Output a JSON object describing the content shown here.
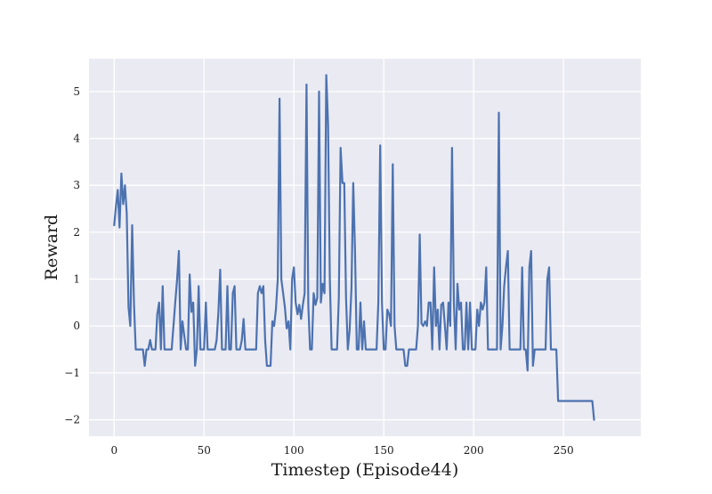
{
  "chart_data": {
    "type": "line",
    "title": "",
    "xlabel": "Timestep (Episode44)",
    "ylabel": "Reward",
    "xlim": [
      -14,
      293
    ],
    "ylim": [
      -2.35,
      5.7
    ],
    "xticks": [
      0,
      50,
      100,
      150,
      200,
      250
    ],
    "yticks": [
      -2,
      -1,
      0,
      1,
      2,
      3,
      4,
      5
    ],
    "grid": true,
    "legend": "none",
    "colors": {
      "background": "#eaeaf2",
      "grid": "#ffffff",
      "line": "#4c72b0"
    },
    "series": [
      {
        "points": [
          [
            0,
            2.15
          ],
          [
            1,
            2.55
          ],
          [
            2,
            2.9
          ],
          [
            3,
            2.1
          ],
          [
            4,
            3.25
          ],
          [
            5,
            2.6
          ],
          [
            6,
            3.0
          ],
          [
            7,
            2.4
          ],
          [
            8,
            0.4
          ],
          [
            9,
            0.0
          ],
          [
            10,
            2.15
          ],
          [
            11,
            0.5
          ],
          [
            12,
            -0.5
          ],
          [
            14,
            -0.5
          ],
          [
            16,
            -0.5
          ],
          [
            17,
            -0.85
          ],
          [
            18,
            -0.5
          ],
          [
            19,
            -0.5
          ],
          [
            20,
            -0.3
          ],
          [
            21,
            -0.5
          ],
          [
            22,
            -0.5
          ],
          [
            23,
            -0.5
          ],
          [
            24,
            0.25
          ],
          [
            25,
            0.5
          ],
          [
            26,
            -0.5
          ],
          [
            27,
            0.85
          ],
          [
            28,
            -0.5
          ],
          [
            30,
            -0.5
          ],
          [
            32,
            -0.5
          ],
          [
            33,
            0.0
          ],
          [
            34,
            0.5
          ],
          [
            35,
            1.0
          ],
          [
            36,
            1.6
          ],
          [
            37,
            -0.5
          ],
          [
            38,
            0.1
          ],
          [
            39,
            -0.2
          ],
          [
            40,
            -0.5
          ],
          [
            41,
            -0.5
          ],
          [
            42,
            1.1
          ],
          [
            43,
            0.3
          ],
          [
            44,
            0.5
          ],
          [
            45,
            -0.85
          ],
          [
            46,
            -0.5
          ],
          [
            47,
            0.85
          ],
          [
            48,
            -0.5
          ],
          [
            49,
            -0.5
          ],
          [
            50,
            -0.5
          ],
          [
            51,
            0.5
          ],
          [
            52,
            -0.5
          ],
          [
            54,
            -0.5
          ],
          [
            56,
            -0.5
          ],
          [
            57,
            -0.3
          ],
          [
            58,
            0.3
          ],
          [
            59,
            1.2
          ],
          [
            60,
            -0.5
          ],
          [
            61,
            -0.5
          ],
          [
            62,
            -0.5
          ],
          [
            63,
            0.85
          ],
          [
            64,
            -0.5
          ],
          [
            65,
            -0.5
          ],
          [
            66,
            0.7
          ],
          [
            67,
            0.85
          ],
          [
            68,
            -0.5
          ],
          [
            70,
            -0.5
          ],
          [
            71,
            -0.3
          ],
          [
            72,
            0.15
          ],
          [
            73,
            -0.5
          ],
          [
            74,
            -0.5
          ],
          [
            76,
            -0.5
          ],
          [
            78,
            -0.5
          ],
          [
            79,
            -0.5
          ],
          [
            80,
            0.7
          ],
          [
            81,
            0.85
          ],
          [
            82,
            0.7
          ],
          [
            83,
            0.85
          ],
          [
            84,
            -0.3
          ],
          [
            85,
            -0.85
          ],
          [
            86,
            -0.85
          ],
          [
            87,
            -0.85
          ],
          [
            88,
            0.1
          ],
          [
            89,
            0.0
          ],
          [
            90,
            0.35
          ],
          [
            91,
            1.0
          ],
          [
            92,
            4.85
          ],
          [
            93,
            1.0
          ],
          [
            94,
            0.7
          ],
          [
            95,
            0.4
          ],
          [
            96,
            -0.05
          ],
          [
            97,
            0.1
          ],
          [
            98,
            -0.5
          ],
          [
            99,
            1.0
          ],
          [
            100,
            1.25
          ],
          [
            101,
            0.5
          ],
          [
            102,
            0.25
          ],
          [
            103,
            0.45
          ],
          [
            104,
            0.15
          ],
          [
            105,
            0.45
          ],
          [
            106,
            0.7
          ],
          [
            107,
            5.15
          ],
          [
            108,
            0.45
          ],
          [
            109,
            -0.5
          ],
          [
            110,
            -0.5
          ],
          [
            111,
            0.7
          ],
          [
            112,
            0.45
          ],
          [
            113,
            0.6
          ],
          [
            114,
            5.0
          ],
          [
            115,
            0.5
          ],
          [
            116,
            0.9
          ],
          [
            117,
            0.7
          ],
          [
            118,
            5.35
          ],
          [
            119,
            4.3
          ],
          [
            120,
            1.0
          ],
          [
            121,
            -0.5
          ],
          [
            123,
            -0.5
          ],
          [
            124,
            -0.5
          ],
          [
            125,
            0.6
          ],
          [
            126,
            3.8
          ],
          [
            127,
            3.05
          ],
          [
            128,
            3.05
          ],
          [
            129,
            0.6
          ],
          [
            130,
            -0.5
          ],
          [
            131,
            -0.1
          ],
          [
            132,
            0.8
          ],
          [
            133,
            3.05
          ],
          [
            134,
            1.6
          ],
          [
            135,
            -0.5
          ],
          [
            136,
            -0.5
          ],
          [
            137,
            0.5
          ],
          [
            138,
            -0.5
          ],
          [
            139,
            0.1
          ],
          [
            140,
            -0.5
          ],
          [
            142,
            -0.5
          ],
          [
            144,
            -0.5
          ],
          [
            146,
            -0.5
          ],
          [
            147,
            0.5
          ],
          [
            148,
            3.85
          ],
          [
            149,
            0.5
          ],
          [
            150,
            -0.5
          ],
          [
            151,
            -0.5
          ],
          [
            152,
            0.35
          ],
          [
            153,
            0.25
          ],
          [
            154,
            0.0
          ],
          [
            155,
            3.45
          ],
          [
            156,
            0.0
          ],
          [
            157,
            -0.5
          ],
          [
            158,
            -0.5
          ],
          [
            160,
            -0.5
          ],
          [
            161,
            -0.5
          ],
          [
            162,
            -0.85
          ],
          [
            163,
            -0.85
          ],
          [
            164,
            -0.5
          ],
          [
            165,
            -0.5
          ],
          [
            167,
            -0.5
          ],
          [
            168,
            -0.5
          ],
          [
            169,
            0.0
          ],
          [
            170,
            1.95
          ],
          [
            171,
            0.05
          ],
          [
            172,
            0.0
          ],
          [
            173,
            0.1
          ],
          [
            174,
            0.0
          ],
          [
            175,
            0.5
          ],
          [
            176,
            0.5
          ],
          [
            177,
            -0.5
          ],
          [
            178,
            1.25
          ],
          [
            179,
            0.0
          ],
          [
            180,
            0.35
          ],
          [
            181,
            -0.5
          ],
          [
            182,
            0.45
          ],
          [
            183,
            0.5
          ],
          [
            184,
            0.0
          ],
          [
            185,
            -0.5
          ],
          [
            186,
            0.5
          ],
          [
            187,
            0.0
          ],
          [
            188,
            3.8
          ],
          [
            189,
            0.5
          ],
          [
            190,
            -0.5
          ],
          [
            191,
            0.9
          ],
          [
            192,
            0.35
          ],
          [
            193,
            0.5
          ],
          [
            194,
            -0.5
          ],
          [
            195,
            -0.5
          ],
          [
            196,
            0.5
          ],
          [
            197,
            -0.5
          ],
          [
            198,
            0.5
          ],
          [
            199,
            -0.5
          ],
          [
            200,
            -0.5
          ],
          [
            201,
            -0.5
          ],
          [
            202,
            0.35
          ],
          [
            203,
            0.0
          ],
          [
            204,
            0.5
          ],
          [
            205,
            0.35
          ],
          [
            206,
            0.5
          ],
          [
            207,
            1.25
          ],
          [
            208,
            -0.5
          ],
          [
            210,
            -0.5
          ],
          [
            212,
            -0.5
          ],
          [
            213,
            -0.5
          ],
          [
            214,
            4.55
          ],
          [
            215,
            -0.5
          ],
          [
            216,
            0.0
          ],
          [
            217,
            0.85
          ],
          [
            218,
            1.25
          ],
          [
            219,
            1.6
          ],
          [
            220,
            -0.5
          ],
          [
            222,
            -0.5
          ],
          [
            224,
            -0.5
          ],
          [
            226,
            -0.5
          ],
          [
            227,
            1.25
          ],
          [
            228,
            -0.5
          ],
          [
            229,
            -0.5
          ],
          [
            230,
            -0.95
          ],
          [
            231,
            1.25
          ],
          [
            232,
            1.6
          ],
          [
            233,
            -0.85
          ],
          [
            234,
            -0.5
          ],
          [
            236,
            -0.5
          ],
          [
            238,
            -0.5
          ],
          [
            240,
            -0.5
          ],
          [
            241,
            1.0
          ],
          [
            242,
            1.25
          ],
          [
            243,
            -0.5
          ],
          [
            245,
            -0.5
          ],
          [
            246,
            -0.5
          ],
          [
            247,
            -1.6
          ],
          [
            250,
            -1.6
          ],
          [
            255,
            -1.6
          ],
          [
            260,
            -1.6
          ],
          [
            264,
            -1.6
          ],
          [
            266,
            -1.6
          ],
          [
            267,
            -2.0
          ]
        ]
      }
    ]
  }
}
